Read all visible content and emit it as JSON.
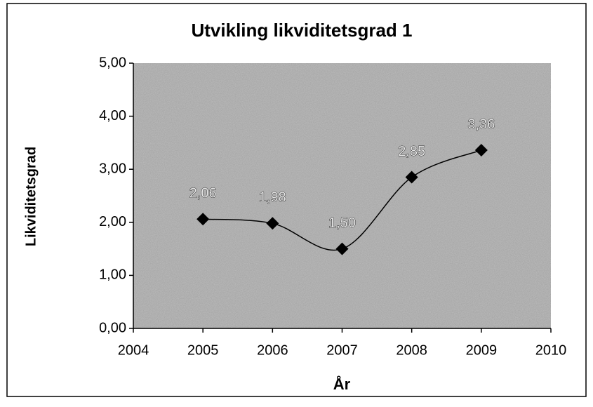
{
  "chart_data": {
    "type": "line",
    "title": "Utvikling likviditetsgrad 1",
    "x_label": "År",
    "y_label": "Likviditetsgrad",
    "x": [
      2005,
      2006,
      2007,
      2008,
      2009
    ],
    "series": [
      {
        "name": "Likviditetsgrad",
        "color": "#000000",
        "values": [
          2.06,
          1.98,
          1.5,
          2.85,
          3.36
        ],
        "value_labels": [
          "2,06",
          "1,98",
          "1,50",
          "2,85",
          "3,36"
        ]
      }
    ],
    "xlim": [
      2004,
      2010
    ],
    "xticks": [
      2004,
      2005,
      2006,
      2007,
      2008,
      2009,
      2010
    ],
    "ylim": [
      0,
      5
    ],
    "yticks": [
      {
        "value": 0,
        "label": "0,00"
      },
      {
        "value": 1,
        "label": "1,00"
      },
      {
        "value": 2,
        "label": "2,00"
      },
      {
        "value": 3,
        "label": "3,00"
      },
      {
        "value": 4,
        "label": "4,00"
      },
      {
        "value": 5,
        "label": "5,00"
      }
    ],
    "smooth": true
  }
}
